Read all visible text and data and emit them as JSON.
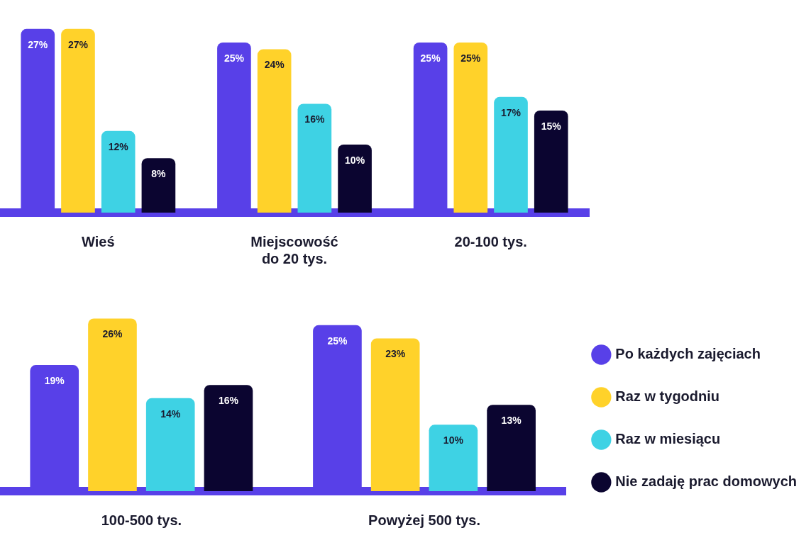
{
  "chart_data": [
    {
      "type": "bar",
      "categories": [
        "Wieś",
        "Miejscowość do 20 tys.",
        "20-100 tys."
      ],
      "series": [
        {
          "color": "#5840e8",
          "values": [
            27,
            25,
            25
          ],
          "value_labels": [
            "27%",
            "25%",
            "25%"
          ]
        },
        {
          "color": "#ffd22a",
          "values": [
            27,
            24,
            25
          ],
          "value_labels": [
            "27%",
            "24%",
            "25%"
          ]
        },
        {
          "color": "#3ed2e4",
          "values": [
            12,
            16,
            17
          ],
          "value_labels": [
            "12%",
            "16%",
            "17%"
          ]
        },
        {
          "color": "#0b0530",
          "values": [
            8,
            10,
            15
          ],
          "value_labels": [
            "8%",
            "10%",
            "15%"
          ]
        }
      ],
      "legend": false,
      "grid": false,
      "tick_labels": "x"
    },
    {
      "type": "bar",
      "categories": [
        "100-500 tys.",
        "Powyżej 500 tys."
      ],
      "series": [
        {
          "name": "Po każdych zajęciach",
          "color": "#5840e8",
          "values": [
            19,
            25
          ],
          "value_labels": [
            "19%",
            "25%"
          ]
        },
        {
          "name": "Raz w tygodniu",
          "color": "#ffd22a",
          "values": [
            26,
            23
          ],
          "value_labels": [
            "26%",
            "23%"
          ]
        },
        {
          "name": "Raz w miesiącu",
          "color": "#3ed2e4",
          "values": [
            14,
            10
          ],
          "value_labels": [
            "14%",
            "10%"
          ]
        },
        {
          "name": "Nie zadaję prac domowych",
          "color": "#0b0530",
          "values": [
            16,
            13
          ],
          "value_labels": [
            "16%",
            "13%"
          ]
        }
      ],
      "legend": "right",
      "grid": false,
      "tick_labels": "x"
    }
  ]
}
